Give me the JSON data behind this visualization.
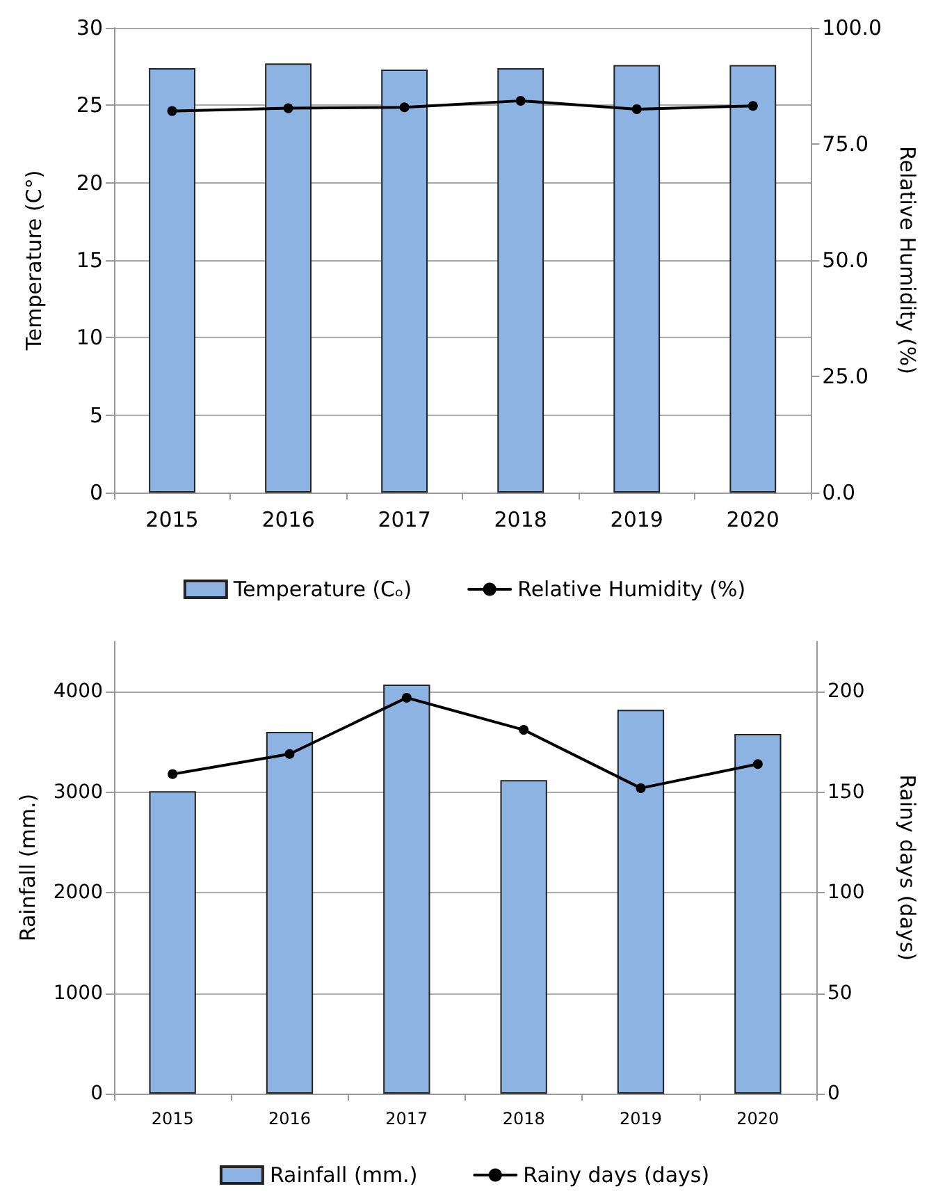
{
  "chart_data": [
    {
      "type": "bar",
      "categories": [
        "2015",
        "2016",
        "2017",
        "2018",
        "2019",
        "2020"
      ],
      "ylabel": "Temperature (C°)",
      "y2label": "Relative Humidity (%)",
      "series": [
        {
          "name": "Temperature (Cₒ)",
          "color": "#8db3e2",
          "values": [
            27.4,
            27.7,
            27.3,
            27.4,
            27.6,
            27.6
          ]
        },
        {
          "name": "Relative Humidity (%)",
          "type": "line",
          "axis": "y2",
          "color": "#000000",
          "values": [
            82.1,
            82.7,
            82.9,
            84.3,
            82.5,
            83.2
          ]
        }
      ],
      "ylim": [
        0,
        30
      ],
      "yticks": [
        0,
        5,
        10,
        15,
        20,
        25,
        30
      ],
      "y2lim": [
        0,
        100
      ],
      "y2ticks": [
        {
          "value": 0,
          "label": "0.0"
        },
        {
          "value": 25,
          "label": "25.0"
        },
        {
          "value": 50,
          "label": "50.0"
        },
        {
          "value": 75,
          "label": "75.0"
        },
        {
          "value": 100,
          "label": "100.0"
        }
      ],
      "grid": "y",
      "legend": "bottom",
      "marker": "circle",
      "line_style": "solid"
    },
    {
      "type": "bar",
      "categories": [
        "2015",
        "2016",
        "2017",
        "2018",
        "2019",
        "2020"
      ],
      "ylabel": "Rainfall (mm.)",
      "y2label": "Rainy days (days)",
      "series": [
        {
          "name": "Rainfall (mm.)",
          "color": "#8db3e2",
          "values": [
            3010,
            3600,
            4070,
            3120,
            3820,
            3580
          ]
        },
        {
          "name": "Rainy days (days)",
          "type": "line",
          "axis": "y2",
          "color": "#000000",
          "values": [
            159,
            169,
            197,
            181,
            152,
            164
          ]
        }
      ],
      "ylim": [
        0,
        4500
      ],
      "yticks": [
        0,
        1000,
        2000,
        3000,
        4000
      ],
      "y2lim": [
        0,
        225
      ],
      "y2ticks": [
        0,
        50,
        100,
        150,
        200
      ],
      "grid": "y",
      "legend": "bottom",
      "marker": "circle",
      "line_style": "solid"
    }
  ]
}
